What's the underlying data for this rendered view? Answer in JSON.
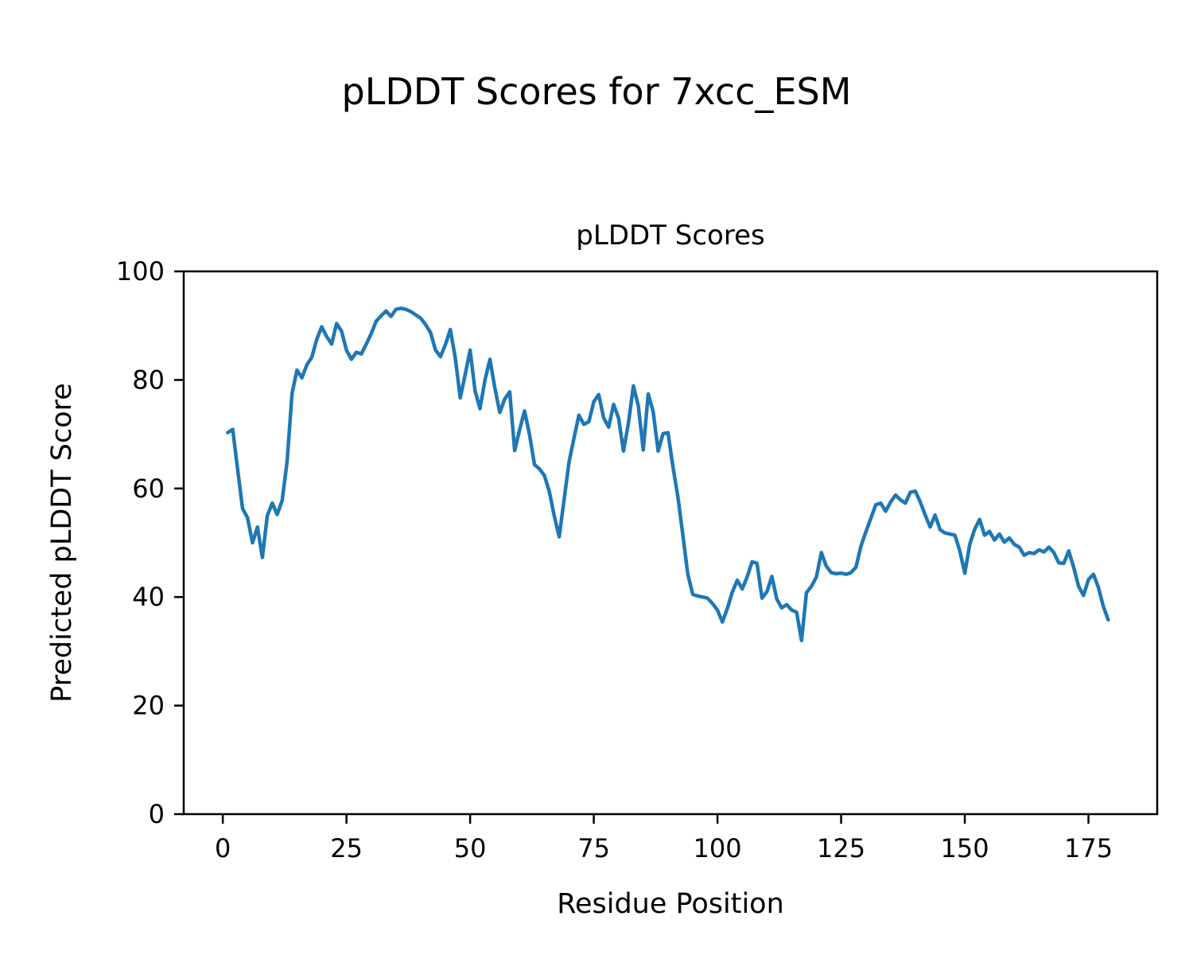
{
  "figure": {
    "suptitle": "pLDDT Scores for 7xcc_ESM",
    "background_color": "#ffffff",
    "text_color": "#000000"
  },
  "chart_data": {
    "type": "line",
    "title": "pLDDT Scores",
    "xlabel": "Residue Position",
    "ylabel": "Predicted pLDDT Score",
    "line_color": "#1f77b4",
    "grid": false,
    "legend": "none",
    "xlim": [
      -7.9,
      188.9
    ],
    "ylim": [
      0,
      100
    ],
    "x_ticks": [
      0,
      25,
      50,
      75,
      100,
      125,
      150,
      175
    ],
    "y_ticks": [
      0,
      20,
      40,
      60,
      80,
      100
    ],
    "series": [
      {
        "name": "pLDDT",
        "x": [
          1,
          2,
          3,
          4,
          5,
          6,
          7,
          8,
          9,
          10,
          11,
          12,
          13,
          14,
          15,
          16,
          17,
          18,
          19,
          20,
          21,
          22,
          23,
          24,
          25,
          26,
          27,
          28,
          29,
          30,
          31,
          32,
          33,
          34,
          35,
          36,
          37,
          38,
          39,
          40,
          41,
          42,
          43,
          44,
          45,
          46,
          47,
          48,
          49,
          50,
          51,
          52,
          53,
          54,
          55,
          56,
          57,
          58,
          59,
          60,
          61,
          62,
          63,
          64,
          65,
          66,
          67,
          68,
          69,
          70,
          71,
          72,
          73,
          74,
          75,
          76,
          77,
          78,
          79,
          80,
          81,
          82,
          83,
          84,
          85,
          86,
          87,
          88,
          89,
          90,
          91,
          92,
          93,
          94,
          95,
          96,
          97,
          98,
          99,
          100,
          101,
          102,
          103,
          104,
          105,
          106,
          107,
          108,
          109,
          110,
          111,
          112,
          113,
          114,
          115,
          116,
          117,
          118,
          119,
          120,
          121,
          122,
          123,
          124,
          125,
          126,
          127,
          128,
          129,
          130,
          131,
          132,
          133,
          134,
          135,
          136,
          137,
          138,
          139,
          140,
          141,
          142,
          143,
          144,
          145,
          146,
          147,
          148,
          149,
          150,
          151,
          152,
          153,
          154,
          155,
          156,
          157,
          158,
          159,
          160,
          161,
          162,
          163,
          164,
          165,
          166,
          167,
          168,
          169,
          170,
          171,
          172,
          173,
          174,
          175,
          176,
          177,
          178,
          179
        ],
        "y": [
          70.3,
          70.9,
          63.5,
          56.3,
          54.6,
          50.0,
          52.9,
          47.3,
          55.0,
          57.3,
          55.2,
          57.8,
          65.0,
          77.5,
          81.8,
          80.4,
          82.8,
          84.2,
          87.5,
          89.8,
          88.0,
          86.6,
          90.4,
          89.0,
          85.5,
          83.8,
          85.1,
          84.8,
          86.6,
          88.5,
          90.8,
          91.8,
          92.7,
          91.7,
          93.0,
          93.2,
          93.0,
          92.6,
          92.0,
          91.4,
          90.2,
          88.7,
          85.5,
          84.3,
          86.5,
          89.3,
          84.0,
          76.7,
          81.0,
          85.5,
          78.0,
          74.7,
          80.0,
          83.8,
          78.5,
          74.0,
          76.5,
          77.8,
          67.0,
          70.8,
          74.3,
          70.0,
          64.4,
          63.6,
          62.4,
          59.5,
          55.0,
          51.1,
          58.0,
          64.9,
          69.3,
          73.5,
          71.8,
          72.3,
          76.0,
          77.3,
          73.0,
          71.3,
          75.5,
          73.0,
          66.9,
          72.0,
          78.9,
          75.2,
          67.1,
          77.4,
          74.2,
          66.9,
          70.1,
          70.3,
          64.0,
          58.5,
          51.5,
          44.2,
          40.5,
          40.2,
          40.0,
          39.8,
          38.8,
          37.6,
          35.4,
          37.9,
          40.9,
          43.1,
          41.5,
          43.7,
          46.5,
          46.2,
          39.8,
          41.0,
          43.8,
          39.6,
          38.0,
          38.6,
          37.6,
          37.2,
          32.0,
          40.8,
          42.0,
          43.7,
          48.2,
          45.7,
          44.5,
          44.3,
          44.4,
          44.2,
          44.5,
          45.5,
          49.4,
          52.0,
          54.5,
          57.0,
          57.3,
          55.8,
          57.5,
          58.8,
          57.9,
          57.3,
          59.3,
          59.5,
          57.5,
          55.1,
          52.9,
          55.1,
          52.4,
          51.8,
          51.6,
          51.4,
          48.5,
          44.4,
          49.7,
          52.5,
          54.3,
          51.4,
          52.1,
          50.5,
          51.6,
          50.1,
          50.9,
          49.7,
          49.2,
          47.7,
          48.2,
          48.0,
          48.7,
          48.3,
          49.2,
          48.2,
          46.3,
          46.2,
          48.5,
          45.5,
          42.0,
          40.3,
          43.2,
          44.2,
          41.8,
          38.3,
          35.8
        ]
      }
    ]
  }
}
